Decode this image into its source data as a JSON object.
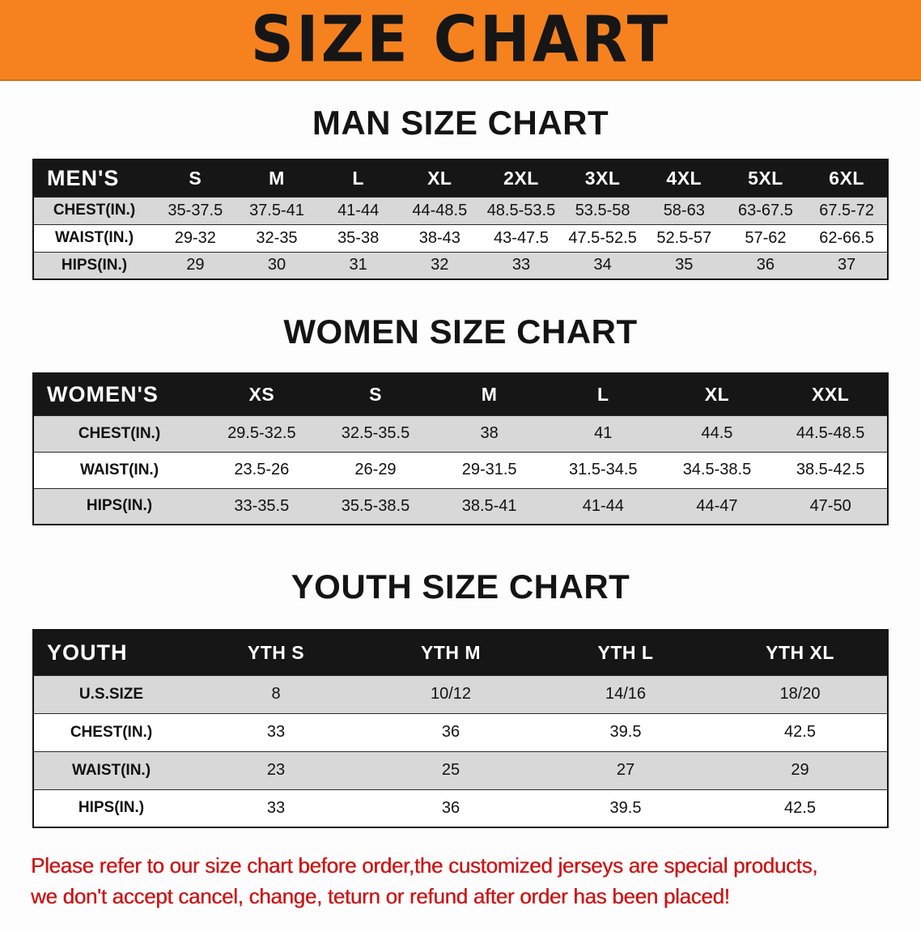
{
  "banner": {
    "title": "SIZE CHART",
    "background_color": "#f5821f",
    "text_color": "#161616"
  },
  "men": {
    "heading": "MAN SIZE CHART",
    "table": {
      "header": [
        "MEN'S",
        "S",
        "M",
        "L",
        "XL",
        "2XL",
        "3XL",
        "4XL",
        "5XL",
        "6XL"
      ],
      "rows": [
        [
          "CHEST(IN.)",
          "35-37.5",
          "37.5-41",
          "41-44",
          "44-48.5",
          "48.5-53.5",
          "53.5-58",
          "58-63",
          "63-67.5",
          "67.5-72"
        ],
        [
          "WAIST(IN.)",
          "29-32",
          "32-35",
          "35-38",
          "38-43",
          "43-47.5",
          "47.5-52.5",
          "52.5-57",
          "57-62",
          "62-66.5"
        ],
        [
          "HIPS(IN.)",
          "29",
          "30",
          "31",
          "32",
          "33",
          "34",
          "35",
          "36",
          "37"
        ]
      ]
    }
  },
  "women": {
    "heading": "WOMEN SIZE CHART",
    "table": {
      "header": [
        "WOMEN'S",
        "XS",
        "S",
        "M",
        "L",
        "XL",
        "XXL"
      ],
      "rows": [
        [
          "CHEST(IN.)",
          "29.5-32.5",
          "32.5-35.5",
          "38",
          "41",
          "44.5",
          "44.5-48.5"
        ],
        [
          "WAIST(IN.)",
          "23.5-26",
          "26-29",
          "29-31.5",
          "31.5-34.5",
          "34.5-38.5",
          "38.5-42.5"
        ],
        [
          "HIPS(IN.)",
          "33-35.5",
          "35.5-38.5",
          "38.5-41",
          "41-44",
          "44-47",
          "47-50"
        ]
      ]
    }
  },
  "youth": {
    "heading": "YOUTH SIZE CHART",
    "table": {
      "header": [
        "YOUTH",
        "YTH S",
        "YTH M",
        "YTH L",
        "YTH XL"
      ],
      "rows": [
        [
          "U.S.SIZE",
          "8",
          "10/12",
          "14/16",
          "18/20"
        ],
        [
          "CHEST(IN.)",
          "33",
          "36",
          "39.5",
          "42.5"
        ],
        [
          "WAIST(IN.)",
          "23",
          "25",
          "27",
          "29"
        ],
        [
          "HIPS(IN.)",
          "33",
          "36",
          "39.5",
          "42.5"
        ]
      ]
    }
  },
  "disclaimer": {
    "line1": "Please refer to our size chart before order,the customized jerseys are special products,",
    "line2": "we don't accept cancel, change, teturn or refund after order has been placed!",
    "text_color": "#cd1414"
  }
}
